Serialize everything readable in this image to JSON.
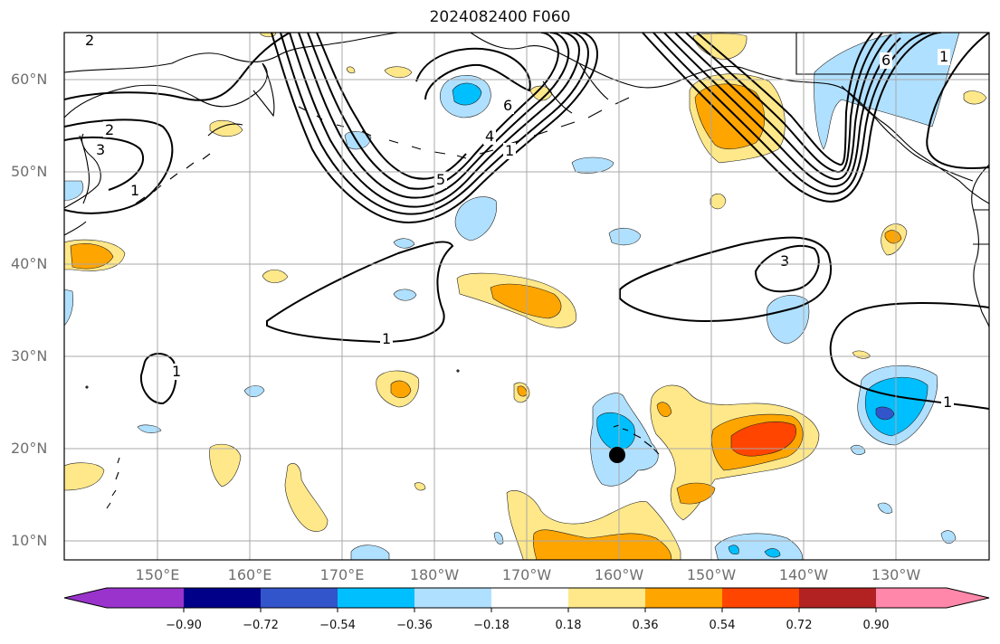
{
  "title": "2024082400 F060",
  "lat_labels": [
    "60°N",
    "50°N",
    "40°N",
    "30°N",
    "20°N",
    "10°N"
  ],
  "lon_labels": [
    "150°E",
    "160°E",
    "170°E",
    "180°W",
    "170°W",
    "160°W",
    "150°W",
    "140°W",
    "130°W"
  ],
  "contour_labels": [
    "1",
    "2",
    "3",
    "4",
    "5",
    "6"
  ],
  "colorbar": {
    "ticks": [
      "−0.90",
      "−0.72",
      "−0.54",
      "−0.36",
      "−0.18",
      "0.18",
      "0.36",
      "0.54",
      "0.72",
      "0.90"
    ],
    "colors": [
      "#9933cc",
      "#000088",
      "#3355cc",
      "#00bfff",
      "#b0e0ff",
      "#ffffff",
      "#ffe88a",
      "#ffa500",
      "#ff4500",
      "#b22222",
      "#ff88aa"
    ]
  },
  "colors": {
    "light_blue": "#b0e0ff",
    "blue": "#00bfff",
    "medium_blue": "#3355cc",
    "yellow": "#ffe88a",
    "orange": "#ffa500",
    "red_orange": "#ff4500",
    "contour": "#000000",
    "coast": "#000000",
    "grid": "#a8a8a8"
  },
  "marker": "black dot near Hawaii"
}
